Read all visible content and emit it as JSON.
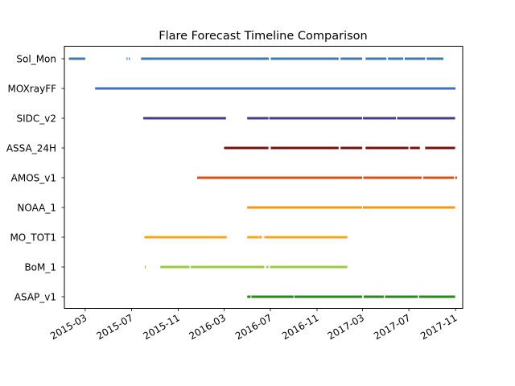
{
  "chart_data": {
    "type": "timeline",
    "title": "Flare Forecast Timeline Comparison",
    "xlabel": "",
    "ylabel": "",
    "x_range": [
      "2015-01-05",
      "2017-11-20"
    ],
    "x_ticks": [
      "2015-03",
      "2015-07",
      "2015-11",
      "2016-03",
      "2016-07",
      "2016-11",
      "2017-03",
      "2017-07",
      "2017-11"
    ],
    "grid": false,
    "legend": "none",
    "series": [
      {
        "name": "Sol_Mon",
        "color": "#3f7ab3",
        "segments": [
          [
            "2015-01-17",
            "2015-03-01"
          ],
          [
            "2015-06-18",
            "2015-06-20"
          ],
          [
            "2015-06-24",
            "2015-06-26"
          ],
          [
            "2015-07-26",
            "2016-06-27"
          ],
          [
            "2016-07-02",
            "2016-12-28"
          ],
          [
            "2017-01-02",
            "2017-02-28"
          ],
          [
            "2017-03-09",
            "2017-05-03"
          ],
          [
            "2017-05-07",
            "2017-06-16"
          ],
          [
            "2017-06-20",
            "2017-08-13"
          ],
          [
            "2017-08-17",
            "2017-09-30"
          ]
        ]
      },
      {
        "name": "MOXrayFF",
        "color": "#3e6fce",
        "segments": [
          [
            "2015-03-27",
            "2017-11-01"
          ]
        ]
      },
      {
        "name": "SIDC_v2",
        "color": "#4a3b8a",
        "segments": [
          [
            "2015-08-01",
            "2016-03-06"
          ],
          [
            "2016-05-01",
            "2016-06-26"
          ],
          [
            "2016-06-28",
            "2017-02-28"
          ],
          [
            "2017-03-02",
            "2017-05-28"
          ],
          [
            "2017-05-31",
            "2017-10-31"
          ]
        ]
      },
      {
        "name": "ASSA_24H",
        "color": "#7a0f0f",
        "segments": [
          [
            "2016-03-01",
            "2016-06-26"
          ],
          [
            "2016-07-02",
            "2016-12-28"
          ],
          [
            "2017-01-02",
            "2017-02-28"
          ],
          [
            "2017-03-09",
            "2017-06-30"
          ],
          [
            "2017-07-04",
            "2017-07-30"
          ],
          [
            "2017-08-13",
            "2017-10-31"
          ]
        ]
      },
      {
        "name": "AMOS_v1",
        "color": "#e04e13",
        "segments": [
          [
            "2015-12-21",
            "2017-02-28"
          ],
          [
            "2017-03-03",
            "2017-08-04"
          ],
          [
            "2017-08-08",
            "2017-10-28"
          ],
          [
            "2017-10-31",
            "2017-11-05"
          ]
        ]
      },
      {
        "name": "NOAA_1",
        "color": "#f09a0e",
        "segments": [
          [
            "2016-05-01",
            "2017-02-28"
          ],
          [
            "2017-03-02",
            "2017-10-31"
          ]
        ]
      },
      {
        "name": "MO_TOT1",
        "color": "#f5a614",
        "segments": [
          [
            "2015-08-04",
            "2016-03-08"
          ],
          [
            "2016-05-01",
            "2016-05-31"
          ],
          [
            "2016-06-01",
            "2016-06-08"
          ],
          [
            "2016-06-15",
            "2017-01-20"
          ]
        ]
      },
      {
        "name": "BoM_1",
        "color": "#9acd3e",
        "segments": [
          [
            "2015-08-05",
            "2015-08-07"
          ],
          [
            "2015-09-15",
            "2015-12-01"
          ],
          [
            "2015-12-04",
            "2016-06-15"
          ],
          [
            "2016-06-20",
            "2016-06-26"
          ],
          [
            "2016-06-30",
            "2017-01-20"
          ]
        ]
      },
      {
        "name": "ASAP_v1",
        "color": "#2a8a1e",
        "segments": [
          [
            "2016-05-01",
            "2016-05-10"
          ],
          [
            "2016-05-12",
            "2016-08-31"
          ],
          [
            "2016-09-02",
            "2017-02-28"
          ],
          [
            "2017-03-04",
            "2017-04-26"
          ],
          [
            "2017-04-29",
            "2017-07-25"
          ],
          [
            "2017-07-28",
            "2017-10-31"
          ]
        ]
      }
    ]
  }
}
